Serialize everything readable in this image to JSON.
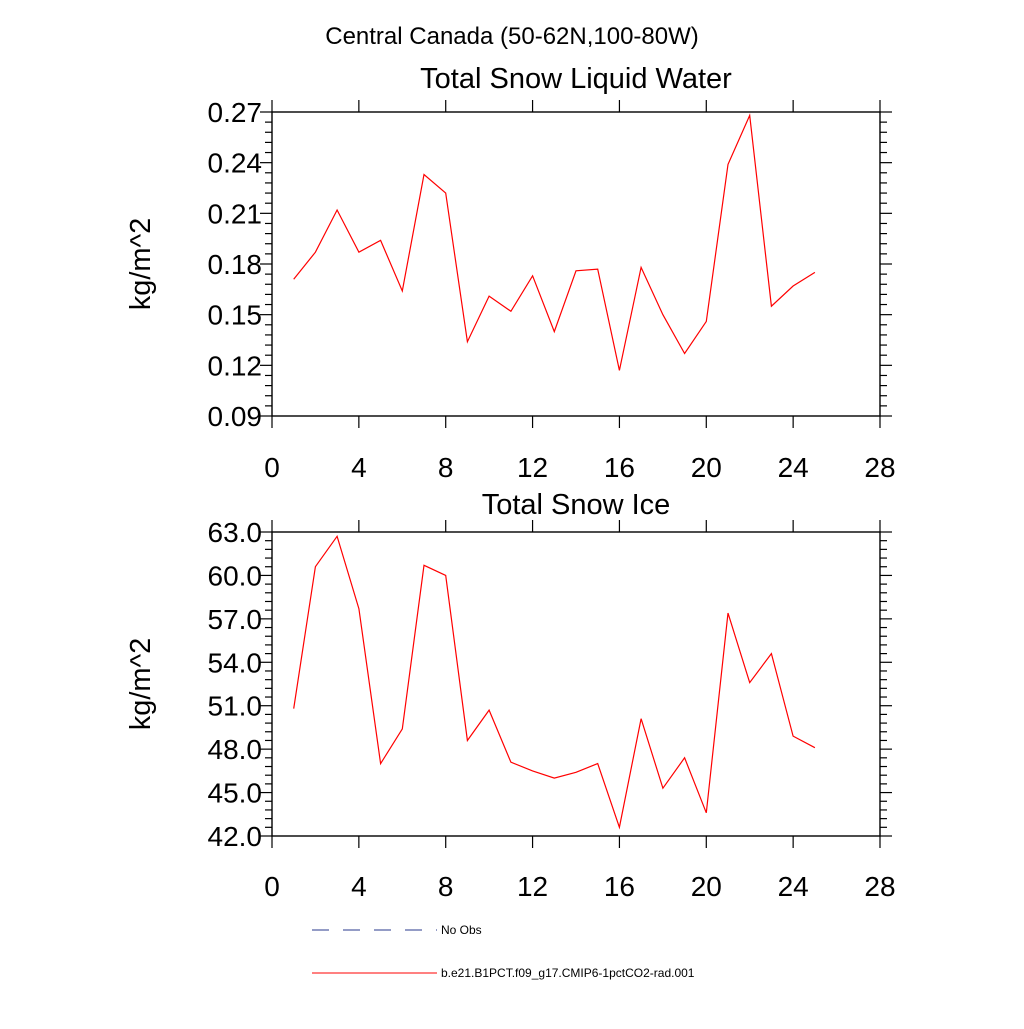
{
  "figure": {
    "suptitle": "Central Canada (50-62N,100-80W)",
    "colors": {
      "series": "#ff0000",
      "axes": "#000000",
      "no_obs": "#2a3a8c"
    }
  },
  "legend": {
    "items": [
      {
        "label": "No Obs",
        "style": "dashed",
        "color": "#2a3a8c"
      },
      {
        "label": "b.e21.B1PCT.f09_g17.CMIP6-1pctCO2-rad.001",
        "style": "solid",
        "color": "#ff0000"
      }
    ]
  },
  "chart_data": [
    {
      "type": "line",
      "title": "Total Snow Liquid Water",
      "xlabel": "",
      "ylabel": "kg/m^2",
      "xlim": [
        0,
        28
      ],
      "ylim": [
        0.09,
        0.27
      ],
      "xticks": [
        0,
        4,
        8,
        12,
        16,
        20,
        24,
        28
      ],
      "xtick_labels": [
        "0",
        "4",
        "8",
        "12",
        "16",
        "20",
        "24",
        "28"
      ],
      "yticks": [
        0.09,
        0.12,
        0.15,
        0.18,
        0.21,
        0.24,
        0.27
      ],
      "ytick_labels": [
        "0.09",
        "0.12",
        "0.15",
        "0.18",
        "0.21",
        "0.24",
        "0.27"
      ],
      "grid": false,
      "series": [
        {
          "name": "b.e21.B1PCT.f09_g17.CMIP6-1pctCO2-rad.001",
          "color": "#ff0000",
          "x": [
            1,
            2,
            3,
            4,
            5,
            6,
            7,
            8,
            9,
            10,
            11,
            12,
            13,
            14,
            15,
            16,
            17,
            18,
            19,
            20,
            21,
            22,
            23,
            24,
            25
          ],
          "values": [
            0.171,
            0.187,
            0.212,
            0.187,
            0.194,
            0.164,
            0.233,
            0.222,
            0.134,
            0.161,
            0.152,
            0.173,
            0.14,
            0.176,
            0.177,
            0.117,
            0.178,
            0.15,
            0.127,
            0.146,
            0.239,
            0.268,
            0.155,
            0.167,
            0.175
          ]
        }
      ]
    },
    {
      "type": "line",
      "title": "Total Snow Ice",
      "xlabel": "",
      "ylabel": "kg/m^2",
      "xlim": [
        0,
        28
      ],
      "ylim": [
        42.0,
        63.0
      ],
      "xticks": [
        0,
        4,
        8,
        12,
        16,
        20,
        24,
        28
      ],
      "xtick_labels": [
        "0",
        "4",
        "8",
        "12",
        "16",
        "20",
        "24",
        "28"
      ],
      "yticks": [
        42.0,
        45.0,
        48.0,
        51.0,
        54.0,
        57.0,
        60.0,
        63.0
      ],
      "ytick_labels": [
        "42.0",
        "45.0",
        "48.0",
        "51.0",
        "54.0",
        "57.0",
        "60.0",
        "63.0"
      ],
      "grid": false,
      "series": [
        {
          "name": "b.e21.B1PCT.f09_g17.CMIP6-1pctCO2-rad.001",
          "color": "#ff0000",
          "x": [
            1,
            2,
            3,
            4,
            5,
            6,
            7,
            8,
            9,
            10,
            11,
            12,
            13,
            14,
            15,
            16,
            17,
            18,
            19,
            20,
            21,
            22,
            23,
            24,
            25
          ],
          "values": [
            50.8,
            60.6,
            62.7,
            57.7,
            47.0,
            49.4,
            60.7,
            60.0,
            48.6,
            50.7,
            47.1,
            46.5,
            46.0,
            46.4,
            47.0,
            42.6,
            50.1,
            45.3,
            47.4,
            43.6,
            57.4,
            52.6,
            54.6,
            48.9,
            48.1
          ]
        }
      ]
    }
  ]
}
